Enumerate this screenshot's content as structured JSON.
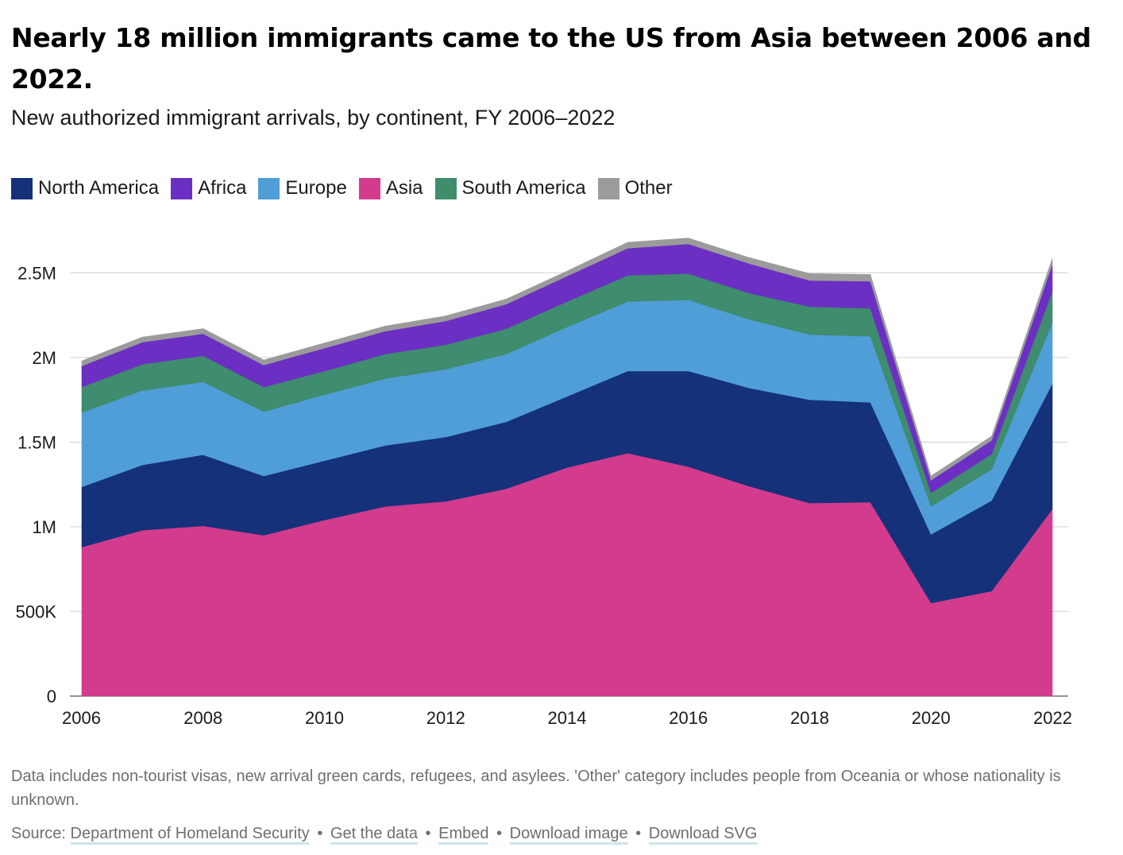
{
  "title": "Nearly 18 million immigrants came to the US from Asia between 2006 and 2022.",
  "subtitle": "New authorized immigrant arrivals, by continent, FY 2006–2022",
  "note": "Data includes non-tourist visas, new arrival green cards, refugees, and asylees. 'Other' category includes people from Oceania or whose nationality is unknown.",
  "source": {
    "label": "Source:",
    "separator": "•",
    "links": [
      "Department of Homeland Security",
      "Get the data",
      "Embed",
      "Download image",
      "Download SVG"
    ]
  },
  "chart_data": {
    "type": "area",
    "stacked": true,
    "x": [
      2006,
      2007,
      2008,
      2009,
      2010,
      2011,
      2012,
      2013,
      2014,
      2015,
      2016,
      2017,
      2018,
      2019,
      2020,
      2021,
      2022
    ],
    "x_ticks": [
      "2006",
      "2008",
      "2010",
      "2012",
      "2014",
      "2016",
      "2018",
      "2020",
      "2022"
    ],
    "y_ticks": [
      {
        "value": 0,
        "label": "0"
      },
      {
        "value": 500000,
        "label": "500K"
      },
      {
        "value": 1000000,
        "label": "1M"
      },
      {
        "value": 1500000,
        "label": "1.5M"
      },
      {
        "value": 2000000,
        "label": "2M"
      },
      {
        "value": 2500000,
        "label": "2.5M"
      }
    ],
    "ylim": [
      0,
      2750000
    ],
    "grid": true,
    "legend_position": "top-left",
    "series": [
      {
        "name": "Asia",
        "color": "#d33b8c",
        "values": [
          880000,
          980000,
          1005000,
          950000,
          1040000,
          1120000,
          1150000,
          1225000,
          1350000,
          1435000,
          1355000,
          1240000,
          1140000,
          1145000,
          550000,
          620000,
          1105000
        ]
      },
      {
        "name": "North America",
        "color": "#14317a",
        "values": [
          355000,
          385000,
          420000,
          350000,
          350000,
          360000,
          380000,
          395000,
          420000,
          485000,
          565000,
          580000,
          610000,
          590000,
          405000,
          535000,
          740000
        ]
      },
      {
        "name": "Europe",
        "color": "#4f9ed8",
        "values": [
          440000,
          440000,
          430000,
          380000,
          390000,
          395000,
          400000,
          400000,
          410000,
          410000,
          420000,
          405000,
          385000,
          390000,
          165000,
          185000,
          360000
        ]
      },
      {
        "name": "South America",
        "color": "#3f8c6e",
        "values": [
          150000,
          155000,
          155000,
          145000,
          140000,
          145000,
          145000,
          150000,
          150000,
          155000,
          155000,
          155000,
          165000,
          165000,
          80000,
          90000,
          185000
        ]
      },
      {
        "name": "Africa",
        "color": "#6b2fc3",
        "values": [
          125000,
          130000,
          130000,
          130000,
          135000,
          135000,
          140000,
          145000,
          150000,
          160000,
          175000,
          175000,
          155000,
          160000,
          75000,
          80000,
          160000
        ]
      },
      {
        "name": "Other",
        "color": "#9b9b9b",
        "values": [
          30000,
          30000,
          30000,
          30000,
          30000,
          30000,
          30000,
          30000,
          30000,
          35000,
          35000,
          35000,
          40000,
          40000,
          25000,
          25000,
          35000
        ]
      }
    ],
    "legend_order": [
      "North America",
      "Africa",
      "Europe",
      "Asia",
      "South America",
      "Other"
    ]
  }
}
